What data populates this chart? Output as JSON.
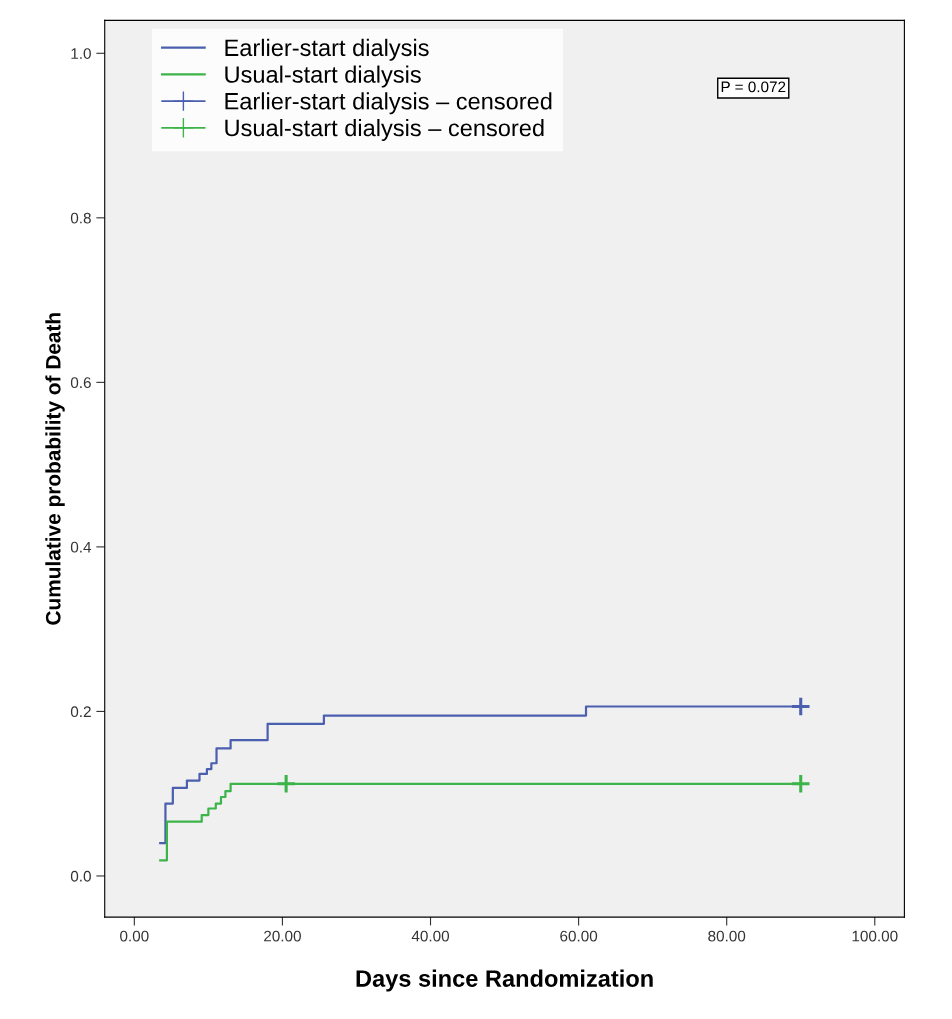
{
  "chart_data": {
    "type": "step",
    "xlabel": "Days since Randomization",
    "ylabel": "Cumulative probability of Death",
    "series": [
      {
        "name": "Earlier-start dialysis",
        "color": "#4a5fae",
        "x": [
          3.5,
          4.2,
          5.2,
          7.1,
          8.8,
          9.8,
          10.4,
          11.1,
          13.0,
          18.0,
          25.6,
          61,
          90
        ],
        "values": [
          0.04,
          0.088,
          0.107,
          0.116,
          0.124,
          0.13,
          0.137,
          0.155,
          0.165,
          0.185,
          0.195,
          0.206,
          0.206
        ]
      },
      {
        "name": "Usual-start dialysis",
        "color": "#3cb44a",
        "x": [
          3.5,
          4.4,
          9.1,
          10.0,
          11.0,
          11.7,
          12.3,
          13.0,
          90
        ],
        "values": [
          0.019,
          0.066,
          0.074,
          0.082,
          0.088,
          0.096,
          0.103,
          0.112,
          0.112
        ]
      },
      {
        "name": "Earlier-start dialysis – censored",
        "type": "scatter",
        "marker": "cross",
        "color": "#4a5fae",
        "x": [
          90
        ],
        "values": [
          0.206
        ]
      },
      {
        "name": "Usual-start dialysis – censored",
        "type": "scatter",
        "marker": "cross",
        "color": "#3cb44a",
        "x": [
          20.5,
          90
        ],
        "values": [
          0.112,
          0.112
        ]
      }
    ],
    "annotations": [
      "P = 0.072"
    ],
    "xlim": [
      -4,
      104
    ],
    "ylim": [
      -0.05,
      1.04
    ],
    "xticks": [
      {
        "value": 0,
        "label": "0.00"
      },
      {
        "value": 20,
        "label": "20.00"
      },
      {
        "value": 40,
        "label": "40.00"
      },
      {
        "value": 60,
        "label": "60.00"
      },
      {
        "value": 80,
        "label": "80.00"
      },
      {
        "value": 100,
        "label": "100.00"
      }
    ],
    "yticks": [
      {
        "value": 0,
        "label": "0.0"
      },
      {
        "value": 0.2,
        "label": "0.2"
      },
      {
        "value": 0.4,
        "label": "0.4"
      },
      {
        "value": 0.6,
        "label": "0.6"
      },
      {
        "value": 0.8,
        "label": "0.8"
      },
      {
        "value": 1.0,
        "label": "1.0"
      }
    ],
    "grid": false,
    "legend": "top left"
  }
}
